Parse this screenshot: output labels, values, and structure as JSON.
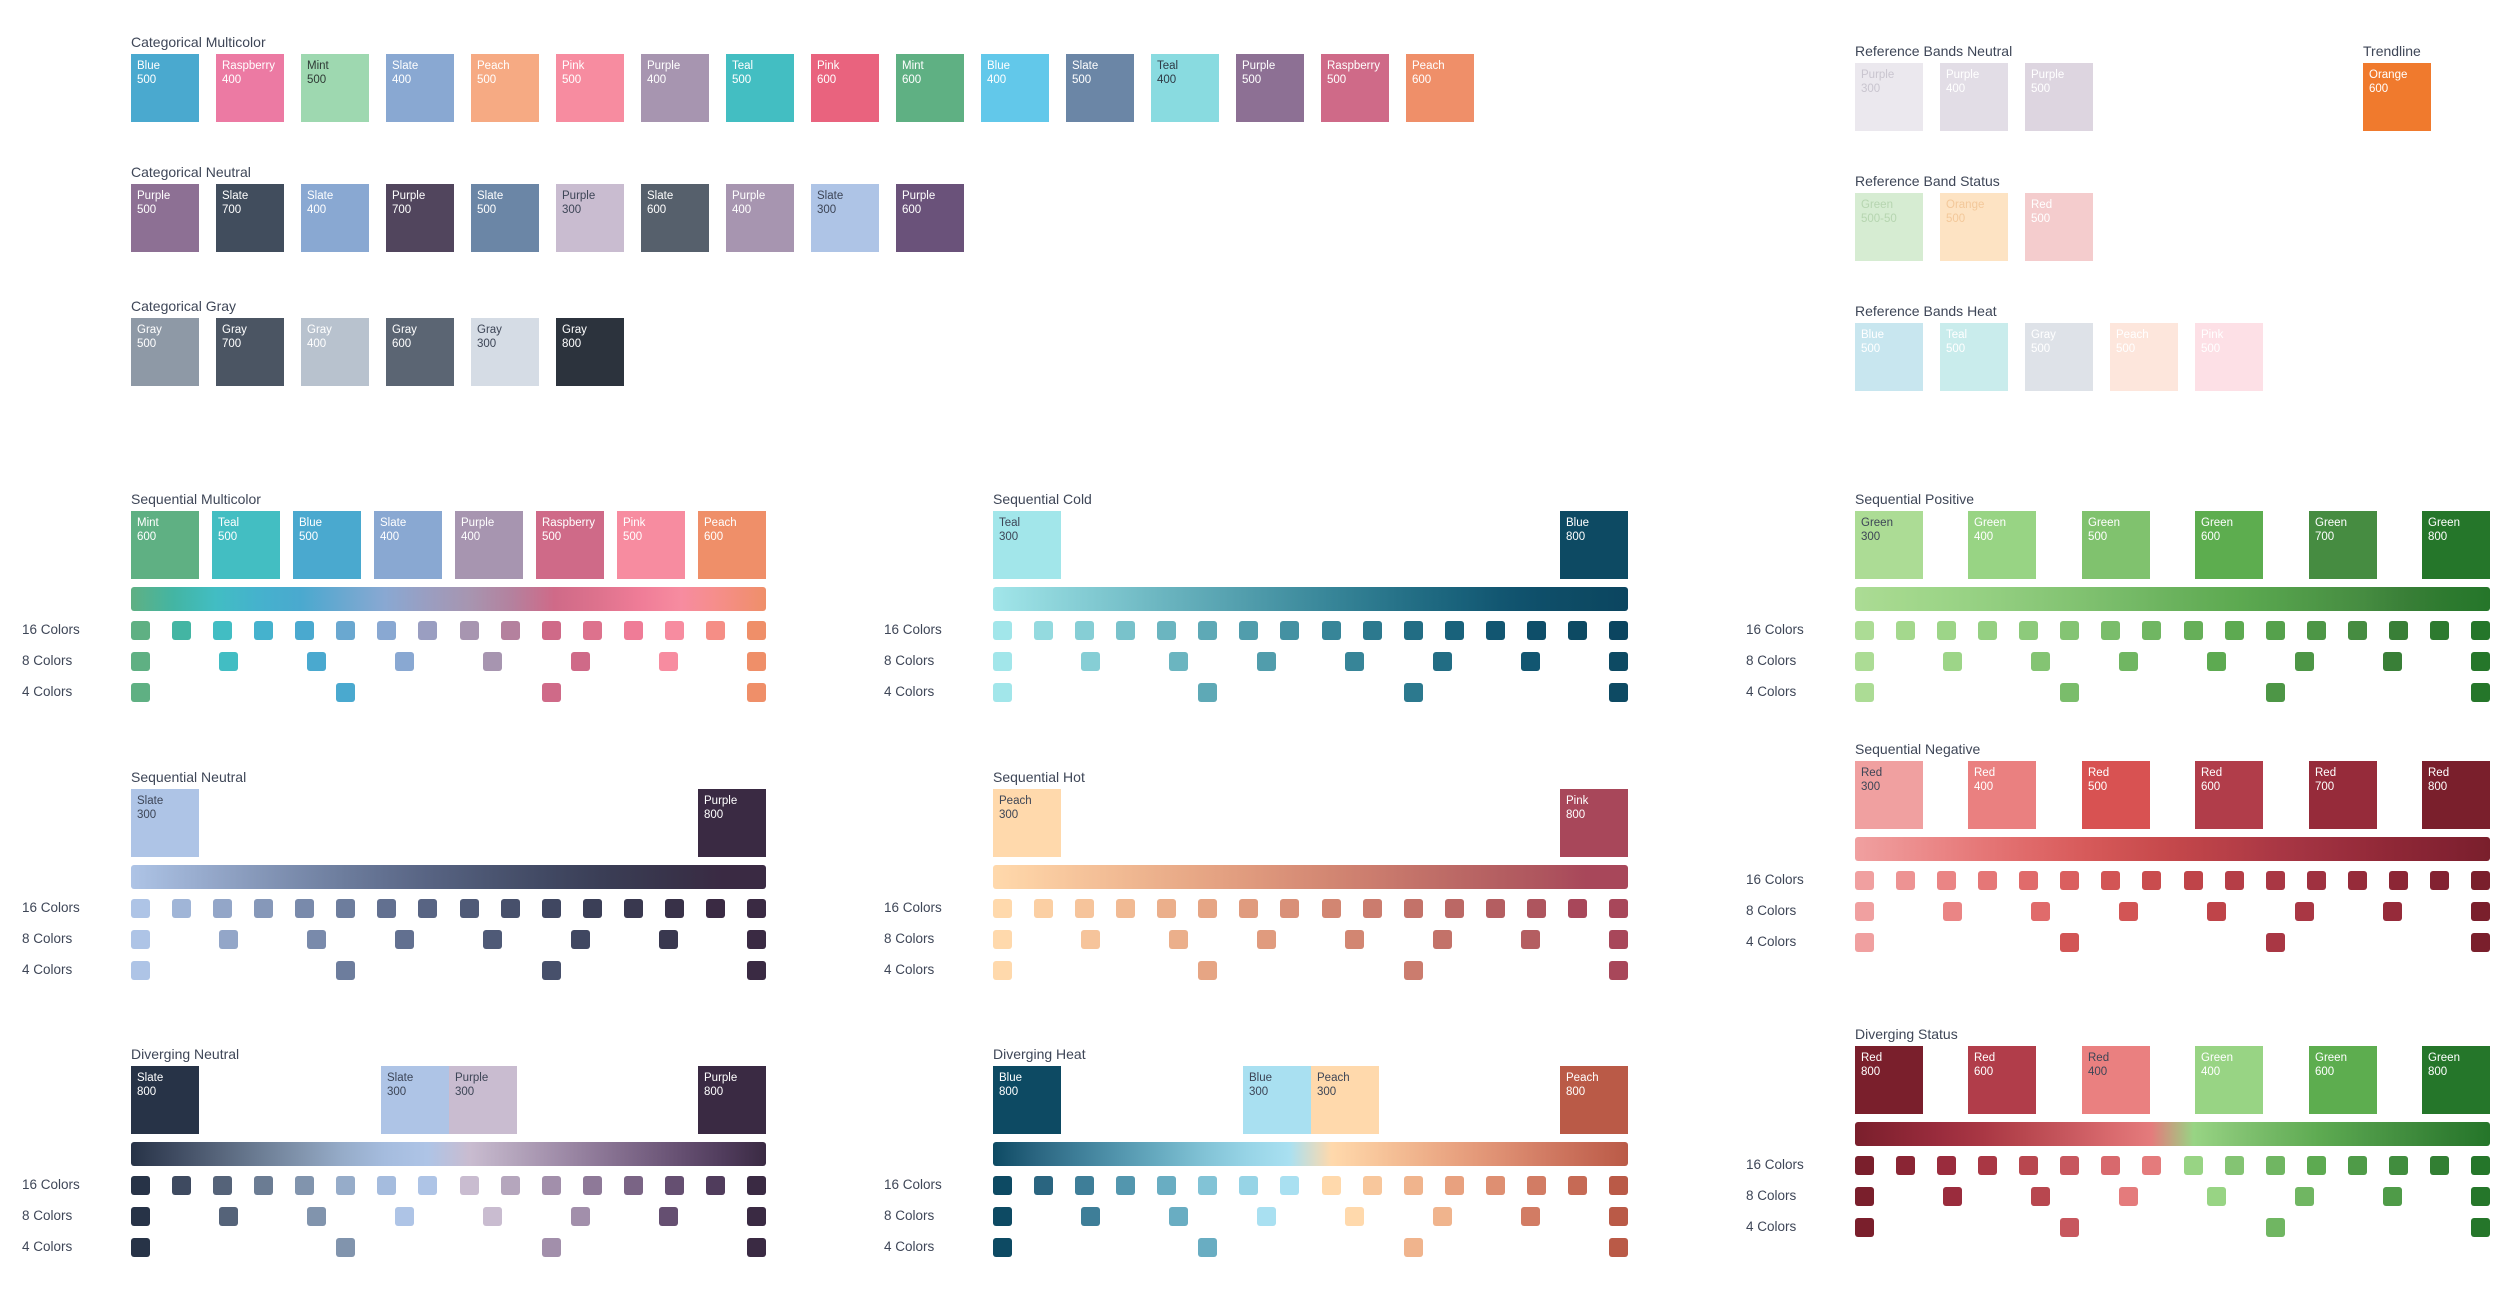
{
  "top_categorical": [
    {
      "title": "Categorical Multicolor",
      "swatches": [
        {
          "label": "Blue\n500",
          "color": "#4aa9cf",
          "text": "#ffffff"
        },
        {
          "label": "Raspberry\n400",
          "color": "#ec7aa3",
          "text": "#ffffff"
        },
        {
          "label": "Mint\n500",
          "color": "#9ed8b0",
          "text": "#2f3a35"
        },
        {
          "label": "Slate\n400",
          "color": "#89a8d2",
          "text": "#ffffff"
        },
        {
          "label": "Peach\n500",
          "color": "#f6aa83",
          "text": "#ffffff"
        },
        {
          "label": "Pink\n500",
          "color": "#f78ca0",
          "text": "#ffffff"
        },
        {
          "label": "Purple\n400",
          "color": "#a795b0",
          "text": "#ffffff"
        },
        {
          "label": "Teal\n500",
          "color": "#43bec2",
          "text": "#ffffff"
        },
        {
          "label": "Pink\n600",
          "color": "#e9637e",
          "text": "#ffffff"
        },
        {
          "label": "Mint\n600",
          "color": "#5fb083",
          "text": "#ffffff"
        },
        {
          "label": "Blue\n400",
          "color": "#62c8ea",
          "text": "#ffffff"
        },
        {
          "label": "Slate\n500",
          "color": "#6b86a6",
          "text": "#ffffff"
        },
        {
          "label": "Teal\n400",
          "color": "#89dbe0",
          "text": "#2f3a45"
        },
        {
          "label": "Purple\n500",
          "color": "#8d7094",
          "text": "#ffffff"
        },
        {
          "label": "Raspberry\n500",
          "color": "#cf6a88",
          "text": "#ffffff"
        },
        {
          "label": "Peach\n600",
          "color": "#ef8f69",
          "text": "#ffffff"
        }
      ]
    },
    {
      "title": "Categorical Neutral",
      "swatches": [
        {
          "label": "Purple\n500",
          "color": "#8d7094",
          "text": "#ffffff"
        },
        {
          "label": "Slate\n700",
          "color": "#414d5d",
          "text": "#ffffff"
        },
        {
          "label": "Slate\n400",
          "color": "#89a8d2",
          "text": "#ffffff"
        },
        {
          "label": "Purple\n700",
          "color": "#51455d",
          "text": "#ffffff"
        },
        {
          "label": "Slate\n500",
          "color": "#6b86a6",
          "text": "#ffffff"
        },
        {
          "label": "Purple\n300",
          "color": "#c9bcd0",
          "text": "#3d4556"
        },
        {
          "label": "Slate\n600",
          "color": "#56606c",
          "text": "#ffffff"
        },
        {
          "label": "Purple\n400",
          "color": "#a795b0",
          "text": "#ffffff"
        },
        {
          "label": "Slate\n300",
          "color": "#aec4e6",
          "text": "#3d4556"
        },
        {
          "label": "Purple\n600",
          "color": "#6a527a",
          "text": "#ffffff"
        }
      ]
    },
    {
      "title": "Categorical Gray",
      "swatches": [
        {
          "label": "Gray\n500",
          "color": "#8e99a6",
          "text": "#ffffff"
        },
        {
          "label": "Gray\n700",
          "color": "#4b5563",
          "text": "#ffffff"
        },
        {
          "label": "Gray\n400",
          "color": "#b8c2ce",
          "text": "#ffffff"
        },
        {
          "label": "Gray\n600",
          "color": "#5b6573",
          "text": "#ffffff"
        },
        {
          "label": "Gray\n300",
          "color": "#d5dce5",
          "text": "#3d4556"
        },
        {
          "label": "Gray\n800",
          "color": "#2c333d",
          "text": "#ffffff"
        }
      ]
    }
  ],
  "reference": [
    {
      "title": "Reference Bands Neutral",
      "swatches": [
        {
          "label": "Purple\n300",
          "color": "#ebe8ee",
          "text": "#c9c5cf"
        },
        {
          "label": "Purple\n400",
          "color": "#e2dde6",
          "text": "#ffffff"
        },
        {
          "label": "Purple\n500",
          "color": "#ddd5e0",
          "text": "#ffffff"
        }
      ]
    },
    {
      "title": "Trendline",
      "swatches": [
        {
          "label": "Orange\n600",
          "color": "#f07a2d",
          "text": "#ffffff"
        }
      ]
    },
    {
      "title": "Reference Band Status",
      "swatches": [
        {
          "label": "Green\n500-50",
          "color": "#d6ecd2",
          "text": "#b6d5b0"
        },
        {
          "label": "Orange\n500",
          "color": "#fde3c3",
          "text": "#f3c89a"
        },
        {
          "label": "Red\n500",
          "color": "#f4cccd",
          "text": "#ffffff"
        }
      ]
    },
    {
      "title": "Reference Bands Heat",
      "swatches": [
        {
          "label": "Blue\n500",
          "color": "#c8e6ef",
          "text": "#ffffff"
        },
        {
          "label": "Teal\n500",
          "color": "#c9ecec",
          "text": "#ffffff"
        },
        {
          "label": "Gray\n500",
          "color": "#dee2e8",
          "text": "#ffffff"
        },
        {
          "label": "Peach\n500",
          "color": "#fde6dc",
          "text": "#ffffff"
        },
        {
          "label": "Pink\n500",
          "color": "#fde0e6",
          "text": "#ffffff"
        }
      ]
    }
  ],
  "row_labels": {
    "c16": "16 Colors",
    "c8": "8 Colors",
    "c4": "4 Colors"
  },
  "palettes": [
    {
      "title": "Sequential Multicolor",
      "swatches": [
        {
          "label": "Mint\n600",
          "color": "#5fb083",
          "text": "#ffffff"
        },
        {
          "label": "Teal\n500",
          "color": "#43bec2",
          "text": "#ffffff"
        },
        {
          "label": "Blue\n500",
          "color": "#4aa9cf",
          "text": "#ffffff"
        },
        {
          "label": "Slate\n400",
          "color": "#89a8d2",
          "text": "#ffffff"
        },
        {
          "label": "Purple\n400",
          "color": "#a795b0",
          "text": "#ffffff"
        },
        {
          "label": "Raspberry\n500",
          "color": "#cf6a88",
          "text": "#ffffff"
        },
        {
          "label": "Pink\n500",
          "color": "#f78ca0",
          "text": "#ffffff"
        },
        {
          "label": "Peach\n600",
          "color": "#ef8f69",
          "text": "#ffffff"
        }
      ],
      "colors16": [
        "#5fb083",
        "#43b5a3",
        "#42bdc3",
        "#45b2cd",
        "#4aa9cf",
        "#6aa8d0",
        "#89a8d2",
        "#9a9ec1",
        "#a795b0",
        "#b4819e",
        "#cf6a88",
        "#dd728d",
        "#ef7c97",
        "#f78ca0",
        "#f58e86",
        "#ef8f69"
      ],
      "colors8": [
        "#5fb083",
        "#42bdc3",
        "#4aa9cf",
        "#89a8d2",
        "#a795b0",
        "#cf6a88",
        "#f78ca0",
        "#ef8f69"
      ],
      "colors4": [
        "#5fb083",
        "#4aa9cf",
        "#cf6a88",
        "#ef8f69"
      ]
    },
    {
      "title": "Sequential Cold",
      "swatches": [
        {
          "label": "Teal\n300",
          "color": "#a2e6ea",
          "text": "#3d4556"
        },
        {
          "label": "Blue\n800",
          "color": "#0d4a63",
          "text": "#ffffff"
        }
      ],
      "colors16": [
        "#a2e6ea",
        "#94dadf",
        "#86ced5",
        "#79c2cb",
        "#6bb5c0",
        "#5ea9b6",
        "#519dac",
        "#4491a2",
        "#378598",
        "#2c798e",
        "#226d84",
        "#19627b",
        "#125671",
        "#0e4e69",
        "#0d4a63",
        "#0b4560"
      ],
      "colors8": [
        "#a2e6ea",
        "#86ced5",
        "#6bb5c0",
        "#519dac",
        "#378598",
        "#226d84",
        "#125671",
        "#0d4a63"
      ],
      "colors4": [
        "#a2e6ea",
        "#5ea9b6",
        "#2c798e",
        "#0d4a63"
      ]
    },
    {
      "title": "Sequential Positive",
      "swatches": [
        {
          "label": "Green\n300",
          "color": "#acdc95",
          "text": "#3d4556"
        },
        {
          "label": "Green\n400",
          "color": "#98d484",
          "text": "#ffffff"
        },
        {
          "label": "Green\n500",
          "color": "#80c26e",
          "text": "#ffffff"
        },
        {
          "label": "Green\n600",
          "color": "#5dad4f",
          "text": "#ffffff"
        },
        {
          "label": "Green\n700",
          "color": "#468c41",
          "text": "#ffffff"
        },
        {
          "label": "Green\n800",
          "color": "#25762a",
          "text": "#ffffff"
        }
      ],
      "colors16": [
        "#acdc95",
        "#a4d88d",
        "#9dd588",
        "#95d082",
        "#8dca7b",
        "#84c473",
        "#7abd6b",
        "#70b662",
        "#66af59",
        "#5daa51",
        "#55a14c",
        "#4d9646",
        "#468c41",
        "#397f37",
        "#2d7a2f",
        "#25762a"
      ],
      "colors8": [
        "#acdc95",
        "#9dd588",
        "#84c473",
        "#70b662",
        "#5daa51",
        "#4d9646",
        "#397f37",
        "#25762a"
      ],
      "colors4": [
        "#acdc95",
        "#7abd6b",
        "#4d9646",
        "#25762a"
      ]
    },
    {
      "title": "Sequential Neutral",
      "swatches": [
        {
          "label": "Slate\n300",
          "color": "#aec4e6",
          "text": "#3d4556"
        },
        {
          "label": "Purple\n800",
          "color": "#3a2a43",
          "text": "#ffffff"
        }
      ],
      "colors16": [
        "#aec4e6",
        "#a0b5d7",
        "#93a6c8",
        "#8698b9",
        "#798aab",
        "#6d7d9d",
        "#627090",
        "#586483",
        "#4f5a77",
        "#47506b",
        "#404761",
        "#3b3f57",
        "#39384f",
        "#383148",
        "#3a2a43",
        "#3a2a43"
      ],
      "colors8": [
        "#aec4e6",
        "#93a6c8",
        "#798aab",
        "#627090",
        "#4f5a77",
        "#404761",
        "#39384f",
        "#3a2a43"
      ],
      "colors4": [
        "#aec4e6",
        "#6d7d9d",
        "#47506b",
        "#3a2a43"
      ]
    },
    {
      "title": "Sequential Hot",
      "swatches": [
        {
          "label": "Peach\n300",
          "color": "#ffd9ac",
          "text": "#3d4556"
        },
        {
          "label": "Pink\n800",
          "color": "#a8475a",
          "text": "#ffffff"
        }
      ],
      "colors16": [
        "#ffd9ac",
        "#fbcfa3",
        "#f6c49b",
        "#f1ba93",
        "#ebaf8b",
        "#e6a584",
        "#e09b7e",
        "#d99078",
        "#d28672",
        "#cb7c6e",
        "#c37269",
        "#bb6865",
        "#b45e61",
        "#ae555e",
        "#a8475a",
        "#a8475a"
      ],
      "colors8": [
        "#ffd9ac",
        "#f6c49b",
        "#ebaf8b",
        "#e09b7e",
        "#d28672",
        "#c37269",
        "#b45e61",
        "#a8475a"
      ],
      "colors4": [
        "#ffd9ac",
        "#e6a584",
        "#cb7c6e",
        "#a8475a"
      ]
    },
    {
      "title": "Sequential Negative",
      "swatches": [
        {
          "label": "Red\n300",
          "color": "#f0a0a0",
          "text": "#3d4556"
        },
        {
          "label": "Red\n400",
          "color": "#ea8080",
          "text": "#ffffff"
        },
        {
          "label": "Red\n500",
          "color": "#d85252",
          "text": "#ffffff"
        },
        {
          "label": "Red\n600",
          "color": "#b13d4a",
          "text": "#ffffff"
        },
        {
          "label": "Red\n700",
          "color": "#962b3a",
          "text": "#ffffff"
        },
        {
          "label": "Red\n800",
          "color": "#7a1f2c",
          "text": "#ffffff"
        }
      ],
      "colors16": [
        "#f0a0a0",
        "#ed9393",
        "#ea8585",
        "#e57777",
        "#e06b6b",
        "#da5f5f",
        "#d25555",
        "#c94c4e",
        "#bf4449",
        "#b53e47",
        "#a93744",
        "#9f3140",
        "#962b3a",
        "#8c2635",
        "#832232",
        "#7a1f2c"
      ],
      "colors8": [
        "#f0a0a0",
        "#ea8585",
        "#e06b6b",
        "#d25555",
        "#bf4449",
        "#a93744",
        "#962b3a",
        "#7a1f2c"
      ],
      "colors4": [
        "#f0a0a0",
        "#d25555",
        "#a93744",
        "#7a1f2c"
      ]
    },
    {
      "title": "Diverging Neutral",
      "swatches": [
        {
          "label": "Slate\n800",
          "color": "#273347",
          "text": "#ffffff"
        },
        {
          "label": "Slate\n300",
          "color": "#aec4e6",
          "text": "#3d4556"
        },
        {
          "label": "Purple\n300",
          "color": "#c9bcd0",
          "text": "#3d4556"
        },
        {
          "label": "Purple\n800",
          "color": "#3a2a43",
          "text": "#ffffff"
        }
      ],
      "colors16": [
        "#273347",
        "#3e4a60",
        "#556379",
        "#6b7c93",
        "#8194ad",
        "#96acc9",
        "#a5bcde",
        "#aec4e6",
        "#c9bcd0",
        "#b5a6bd",
        "#a28fab",
        "#8e7998",
        "#7a6485",
        "#654f71",
        "#503c5c",
        "#3a2a43"
      ],
      "colors8": [
        "#273347",
        "#556379",
        "#8194ad",
        "#aec4e6",
        "#c9bcd0",
        "#a28fab",
        "#654f71",
        "#3a2a43"
      ],
      "colors4": [
        "#273347",
        "#8194ad",
        "#a28fab",
        "#3a2a43"
      ]
    },
    {
      "title": "Diverging Heat",
      "swatches": [
        {
          "label": "Blue\n800",
          "color": "#0d4a63",
          "text": "#ffffff"
        },
        {
          "label": "Blue\n300",
          "color": "#a9e0f1",
          "text": "#3d4556"
        },
        {
          "label": "Peach\n300",
          "color": "#ffd9ac",
          "text": "#3d4556"
        },
        {
          "label": "Peach\n800",
          "color": "#ba5a47",
          "text": "#ffffff"
        }
      ],
      "colors16": [
        "#0d4a63",
        "#2a6580",
        "#3e7e98",
        "#5396ae",
        "#69adc2",
        "#82c3d6",
        "#97d4e6",
        "#a9e0f1",
        "#ffd9ac",
        "#f8c79c",
        "#f0b48d",
        "#e8a17f",
        "#de8f72",
        "#d27c64",
        "#c66a55",
        "#ba5a47"
      ],
      "colors8": [
        "#0d4a63",
        "#3e7e98",
        "#69adc2",
        "#a9e0f1",
        "#ffd9ac",
        "#f0b48d",
        "#d27c64",
        "#ba5a47"
      ],
      "colors4": [
        "#0d4a63",
        "#69adc2",
        "#f0b48d",
        "#ba5a47"
      ]
    },
    {
      "title": "Diverging Status",
      "swatches": [
        {
          "label": "Red\n800",
          "color": "#7a1f2c",
          "text": "#ffffff"
        },
        {
          "label": "Red\n600",
          "color": "#b13d4a",
          "text": "#ffffff"
        },
        {
          "label": "Red\n400",
          "color": "#ea8080",
          "text": "#3d4556"
        },
        {
          "label": "Green\n400",
          "color": "#98d484",
          "text": "#ffffff"
        },
        {
          "label": "Green\n600",
          "color": "#5dad4f",
          "text": "#ffffff"
        },
        {
          "label": "Green\n800",
          "color": "#25762a",
          "text": "#ffffff"
        }
      ],
      "colors16": [
        "#7a1f2c",
        "#8a2534",
        "#9a2c3d",
        "#a93744",
        "#b8474f",
        "#c7575e",
        "#d8696d",
        "#e47b7c",
        "#98d484",
        "#84c473",
        "#70b662",
        "#5daa51",
        "#4f9b48",
        "#418d3e",
        "#327f33",
        "#25762a"
      ],
      "colors8": [
        "#7a1f2c",
        "#9a2c3d",
        "#b8474f",
        "#e47b7c",
        "#98d484",
        "#70b662",
        "#4f9b48",
        "#25762a"
      ],
      "colors4": [
        "#7a1f2c",
        "#c7575e",
        "#70b662",
        "#25762a"
      ]
    }
  ]
}
